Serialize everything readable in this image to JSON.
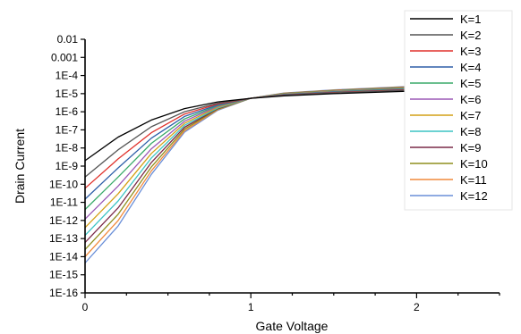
{
  "chart_data": {
    "type": "line",
    "xlabel": "Gate Voltage",
    "ylabel": "Drain Current",
    "xlim": [
      0,
      2.5
    ],
    "ylim_log10": [
      -16,
      -2
    ],
    "yscale": "log",
    "grid": false,
    "legend_position": "top-right",
    "x_ticks": [
      0,
      1,
      2
    ],
    "y_ticks": [
      {
        "exp": -2,
        "label": "0.01"
      },
      {
        "exp": -3,
        "label": "0.001"
      },
      {
        "exp": -4,
        "label": "1E-4"
      },
      {
        "exp": -5,
        "label": "1E-5"
      },
      {
        "exp": -6,
        "label": "1E-6"
      },
      {
        "exp": -7,
        "label": "1E-7"
      },
      {
        "exp": -8,
        "label": "1E-8"
      },
      {
        "exp": -9,
        "label": "1E-9"
      },
      {
        "exp": -10,
        "label": "1E-10"
      },
      {
        "exp": -11,
        "label": "1E-11"
      },
      {
        "exp": -12,
        "label": "1E-12"
      },
      {
        "exp": -13,
        "label": "1E-13"
      },
      {
        "exp": -14,
        "label": "1E-14"
      },
      {
        "exp": -15,
        "label": "1E-15"
      },
      {
        "exp": -16,
        "label": "1E-16"
      }
    ],
    "series": [
      {
        "name": "K=1",
        "color": "#000000",
        "x": [
          0,
          0.2,
          0.4,
          0.6,
          0.8,
          1.0,
          1.2,
          1.5,
          2.0
        ],
        "y": [
          2e-09,
          4e-08,
          3.5e-07,
          1.5e-06,
          3.5e-06,
          5.5e-06,
          7.5e-06,
          1e-05,
          1.4e-05
        ]
      },
      {
        "name": "K=2",
        "color": "#555555",
        "x": [
          0,
          0.2,
          0.4,
          0.6,
          0.8,
          1.0,
          1.2,
          1.5,
          2.0
        ],
        "y": [
          2.5e-10,
          8e-09,
          1.5e-07,
          1e-06,
          3e-06,
          5.6e-06,
          8e-06,
          1.1e-05,
          1.6e-05
        ]
      },
      {
        "name": "K=3",
        "color": "#e0312b",
        "x": [
          0,
          0.2,
          0.4,
          0.6,
          0.8,
          1.0,
          1.2,
          1.5,
          2.0
        ],
        "y": [
          6e-11,
          2.5e-09,
          7e-08,
          7.5e-07,
          2.7e-06,
          5.6e-06,
          8.3e-06,
          1.15e-05,
          1.7e-05
        ]
      },
      {
        "name": "K=4",
        "color": "#2e5fa8",
        "x": [
          0,
          0.2,
          0.4,
          0.6,
          0.8,
          1.0,
          1.2,
          1.5,
          2.0
        ],
        "y": [
          1.5e-11,
          8e-10,
          3.5e-08,
          5.5e-07,
          2.4e-06,
          5.6e-06,
          8.6e-06,
          1.2e-05,
          1.8e-05
        ]
      },
      {
        "name": "K=5",
        "color": "#3aaa6a",
        "x": [
          0,
          0.2,
          0.4,
          0.6,
          0.8,
          1.0,
          1.2,
          1.5,
          2.0
        ],
        "y": [
          4e-12,
          2.5e-10,
          1.8e-08,
          4e-07,
          2.2e-06,
          5.6e-06,
          8.9e-06,
          1.25e-05,
          1.9e-05
        ]
      },
      {
        "name": "K=6",
        "color": "#9b59b6",
        "x": [
          0,
          0.2,
          0.4,
          0.6,
          0.8,
          1.0,
          1.2,
          1.5,
          2.0
        ],
        "y": [
          1.2e-12,
          8e-11,
          9e-09,
          3e-07,
          2e-06,
          5.6e-06,
          9.2e-06,
          1.3e-05,
          2e-05
        ]
      },
      {
        "name": "K=7",
        "color": "#d4a017",
        "x": [
          0,
          0.2,
          0.4,
          0.6,
          0.8,
          1.0,
          1.2,
          1.5,
          2.0
        ],
        "y": [
          4e-13,
          3e-11,
          5e-09,
          2.3e-07,
          1.8e-06,
          5.6e-06,
          9.5e-06,
          1.35e-05,
          2.1e-05
        ]
      },
      {
        "name": "K=8",
        "color": "#3cc4c4",
        "x": [
          0,
          0.2,
          0.4,
          0.6,
          0.8,
          1.0,
          1.2,
          1.5,
          2.0
        ],
        "y": [
          1.5e-13,
          1.2e-11,
          2.8e-09,
          1.8e-07,
          1.6e-06,
          5.6e-06,
          9.8e-06,
          1.4e-05,
          2.2e-05
        ]
      },
      {
        "name": "K=9",
        "color": "#7a2a48",
        "x": [
          0,
          0.2,
          0.4,
          0.6,
          0.8,
          1.0,
          1.2,
          1.5,
          2.0
        ],
        "y": [
          6e-14,
          5e-12,
          1.6e-09,
          1.4e-07,
          1.5e-06,
          5.6e-06,
          1e-05,
          1.45e-05,
          2.3e-05
        ]
      },
      {
        "name": "K=10",
        "color": "#8f8f1f",
        "x": [
          0,
          0.2,
          0.4,
          0.6,
          0.8,
          1.0,
          1.2,
          1.5,
          2.0
        ],
        "y": [
          2.5e-14,
          2.2e-12,
          9e-10,
          1.1e-07,
          1.4e-06,
          5.6e-06,
          1.02e-05,
          1.5e-05,
          2.4e-05
        ]
      },
      {
        "name": "K=11",
        "color": "#f08a3c",
        "x": [
          0,
          0.2,
          0.4,
          0.6,
          0.8,
          1.0,
          1.2,
          1.5,
          2.0
        ],
        "y": [
          1e-14,
          1e-12,
          5.5e-10,
          9e-08,
          1.3e-06,
          5.6e-06,
          1.05e-05,
          1.55e-05,
          2.5e-05
        ]
      },
      {
        "name": "K=12",
        "color": "#6a8fd8",
        "x": [
          0,
          0.2,
          0.4,
          0.6,
          0.8,
          1.0,
          1.2,
          1.5,
          2.0
        ],
        "y": [
          4.5e-15,
          5e-13,
          3.5e-10,
          7.5e-08,
          1.2e-06,
          5.6e-06,
          1.08e-05,
          1.6e-05,
          2.6e-05
        ]
      }
    ]
  }
}
